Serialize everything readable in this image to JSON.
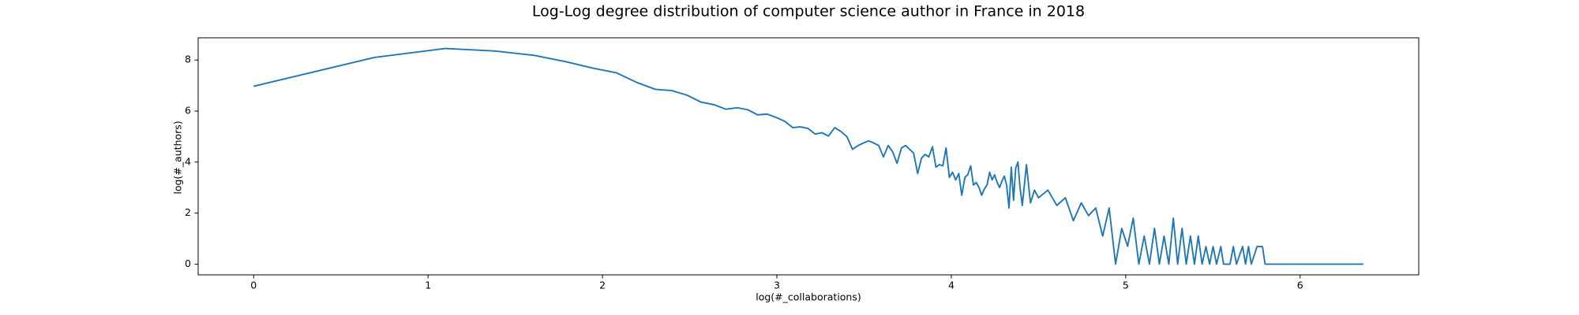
{
  "chart_data": {
    "type": "line",
    "title": "Log-Log degree distribution of computer science author in France in 2018",
    "xlabel": "log(#_collaborations)",
    "ylabel": "log(#_authors)",
    "x": [
      0,
      0.693,
      1.099,
      1.386,
      1.609,
      1.792,
      1.946,
      2.079,
      2.197,
      2.303,
      2.398,
      2.485,
      2.565,
      2.639,
      2.708,
      2.773,
      2.833,
      2.89,
      2.944,
      2.996,
      3.045,
      3.091,
      3.135,
      3.178,
      3.219,
      3.258,
      3.296,
      3.332,
      3.367,
      3.401,
      3.434,
      3.466,
      3.497,
      3.526,
      3.555,
      3.584,
      3.611,
      3.638,
      3.664,
      3.689,
      3.714,
      3.738,
      3.761,
      3.784,
      3.807,
      3.829,
      3.85,
      3.871,
      3.892,
      3.912,
      3.932,
      3.951,
      3.97,
      3.989,
      4.007,
      4.025,
      4.043,
      4.06,
      4.078,
      4.094,
      4.111,
      4.127,
      4.143,
      4.159,
      4.174,
      4.19,
      4.205,
      4.22,
      4.234,
      4.248,
      4.263,
      4.277,
      4.29,
      4.304,
      4.317,
      4.331,
      4.344,
      4.357,
      4.369,
      4.382,
      4.394,
      4.407,
      4.431,
      4.454,
      4.477,
      4.5,
      4.554,
      4.605,
      4.654,
      4.7,
      4.745,
      4.787,
      4.828,
      4.868,
      4.905,
      4.942,
      4.977,
      5.011,
      5.043,
      5.075,
      5.106,
      5.136,
      5.165,
      5.193,
      5.22,
      5.247,
      5.273,
      5.298,
      5.323,
      5.347,
      5.371,
      5.394,
      5.416,
      5.438,
      5.46,
      5.481,
      5.501,
      5.521,
      5.545,
      5.561,
      5.598,
      5.617,
      5.635,
      5.67,
      5.687,
      5.704,
      5.72,
      5.753,
      5.784,
      5.799,
      6.363
    ],
    "series": [
      {
        "name": "log(#_authors)",
        "color": "#1f77b4",
        "values": [
          6.97,
          8.1,
          8.45,
          8.35,
          8.18,
          7.93,
          7.68,
          7.5,
          7.12,
          6.85,
          6.8,
          6.62,
          6.35,
          6.25,
          6.07,
          6.13,
          6.05,
          5.85,
          5.88,
          5.75,
          5.6,
          5.35,
          5.38,
          5.32,
          5.1,
          5.15,
          5.02,
          5.35,
          5.2,
          5.0,
          4.5,
          4.65,
          4.75,
          4.83,
          4.75,
          4.65,
          4.2,
          4.65,
          4.4,
          3.95,
          4.55,
          4.65,
          4.5,
          4.35,
          3.55,
          4.15,
          4.3,
          4.2,
          4.6,
          3.8,
          3.9,
          3.85,
          4.55,
          3.4,
          3.6,
          3.3,
          3.55,
          2.7,
          3.4,
          3.5,
          3.85,
          3.1,
          3.2,
          3.0,
          2.7,
          2.95,
          3.1,
          3.6,
          3.3,
          3.5,
          3.2,
          3.0,
          3.25,
          3.45,
          3.1,
          2.2,
          3.8,
          2.5,
          3.75,
          4.0,
          3.0,
          2.3,
          3.9,
          2.4,
          2.9,
          2.6,
          2.9,
          2.3,
          2.6,
          1.7,
          2.4,
          1.9,
          2.2,
          1.1,
          2.2,
          0,
          1.4,
          0.7,
          1.8,
          0,
          1.1,
          0,
          1.4,
          0,
          1.1,
          0,
          1.8,
          0,
          1.4,
          0,
          1.1,
          0,
          1.1,
          0,
          0.69,
          0,
          0.69,
          0,
          0.69,
          0,
          0,
          0.69,
          0,
          0.69,
          0,
          0.69,
          0,
          0.69,
          0.69,
          0,
          0
        ]
      }
    ],
    "xlim": [
      -0.318,
      6.68
    ],
    "ylim": [
      -0.42,
      8.87
    ],
    "xticks": [
      0,
      1,
      2,
      3,
      4,
      5,
      6
    ],
    "yticks": [
      0,
      2,
      4,
      6,
      8
    ]
  }
}
